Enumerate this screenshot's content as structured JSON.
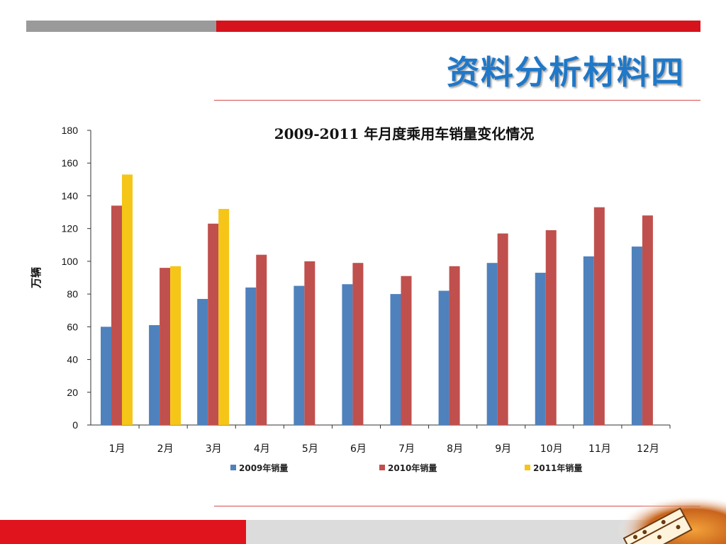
{
  "slide": {
    "title": "资料分析材料四",
    "colors": {
      "title": "#1f78c8",
      "accent_red": "#d6121c",
      "accent_gray": "#9a9a9a"
    },
    "logo_icon": "abacus-calligraphy-logo"
  },
  "chart_data": {
    "type": "bar",
    "title": "2009-2011 年月度乘用车销量变化情况",
    "xlabel": "",
    "ylabel": "万辆",
    "ylim": [
      0,
      180
    ],
    "yticks": [
      0,
      20,
      40,
      60,
      80,
      100,
      120,
      140,
      160,
      180
    ],
    "grid": false,
    "legend_position": "bottom",
    "categories": [
      "1月",
      "2月",
      "3月",
      "4月",
      "5月",
      "6月",
      "7月",
      "8月",
      "9月",
      "10月",
      "11月",
      "12月"
    ],
    "series": [
      {
        "name": "2009年销量",
        "color": "#4f81bd",
        "values": [
          60,
          61,
          77,
          84,
          85,
          86,
          80,
          82,
          99,
          93,
          103,
          109
        ]
      },
      {
        "name": "2010年销量",
        "color": "#c0504d",
        "values": [
          134,
          96,
          123,
          104,
          100,
          99,
          91,
          97,
          117,
          119,
          133,
          128
        ]
      },
      {
        "name": "2011年销量",
        "color": "#f5c518",
        "values": [
          153,
          97,
          132,
          null,
          null,
          null,
          null,
          null,
          null,
          null,
          null,
          null
        ]
      }
    ]
  }
}
